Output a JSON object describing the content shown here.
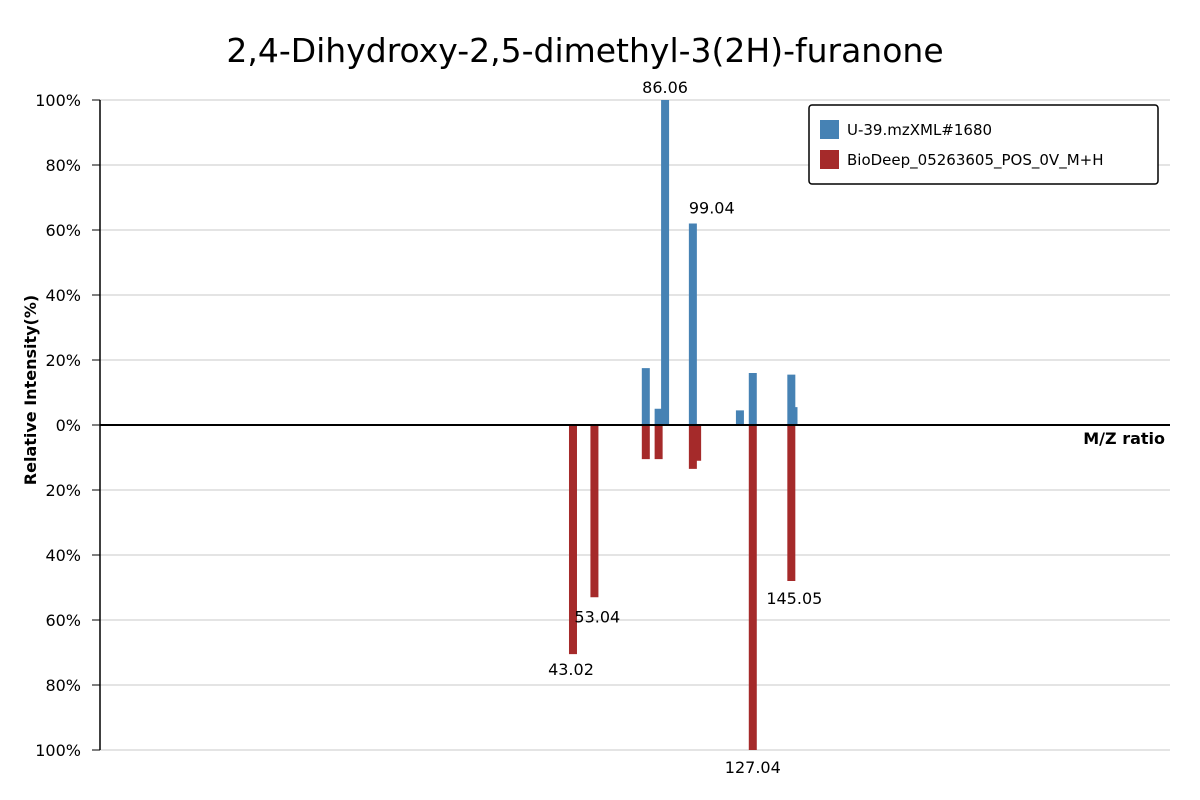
{
  "chart_data": {
    "type": "bar",
    "title": "2,4-Dihydroxy-2,5-dimethyl-3(2H)-furanone",
    "xlabel": "M/Z ratio",
    "ylabel": "Relative Intensity(%)",
    "y_ticks": [
      "100%",
      "80%",
      "60%",
      "40%",
      "20%",
      "0%",
      "20%",
      "40%",
      "60%",
      "80%",
      "100%"
    ],
    "ylim": [
      -100,
      100
    ],
    "grid": true,
    "legend_position": "top-right",
    "legend": [
      {
        "name": "U-39.mzXML#1680",
        "color": "#4682b4"
      },
      {
        "name": "BioDeep_05263605_POS_0V_M+H",
        "color": "#a52a2a"
      }
    ],
    "series": [
      {
        "name": "U-39.mzXML#1680",
        "color": "#4682b4",
        "direction": "up",
        "peaks": [
          {
            "mz": 77.05,
            "intensity": 17.5
          },
          {
            "mz": 83.04,
            "intensity": 5.0
          },
          {
            "mz": 86.06,
            "intensity": 100,
            "label": "86.06"
          },
          {
            "mz": 99.04,
            "intensity": 62,
            "label": "99.04"
          },
          {
            "mz": 121.03,
            "intensity": 4.5
          },
          {
            "mz": 127.04,
            "intensity": 16
          },
          {
            "mz": 145.05,
            "intensity": 15.5
          },
          {
            "mz": 146.06,
            "intensity": 5.5
          }
        ]
      },
      {
        "name": "BioDeep_05263605_POS_0V_M+H",
        "color": "#a52a2a",
        "direction": "down",
        "peaks": [
          {
            "mz": 43.02,
            "intensity": 70.5,
            "label": "43.02"
          },
          {
            "mz": 53.04,
            "intensity": 53,
            "label": "53.04"
          },
          {
            "mz": 77.05,
            "intensity": 10.5
          },
          {
            "mz": 83.04,
            "intensity": 10.5
          },
          {
            "mz": 99.04,
            "intensity": 13.5
          },
          {
            "mz": 101.03,
            "intensity": 11
          },
          {
            "mz": 127.04,
            "intensity": 100,
            "label": "127.04"
          },
          {
            "mz": 145.05,
            "intensity": 48,
            "label": "145.05"
          }
        ]
      }
    ]
  }
}
